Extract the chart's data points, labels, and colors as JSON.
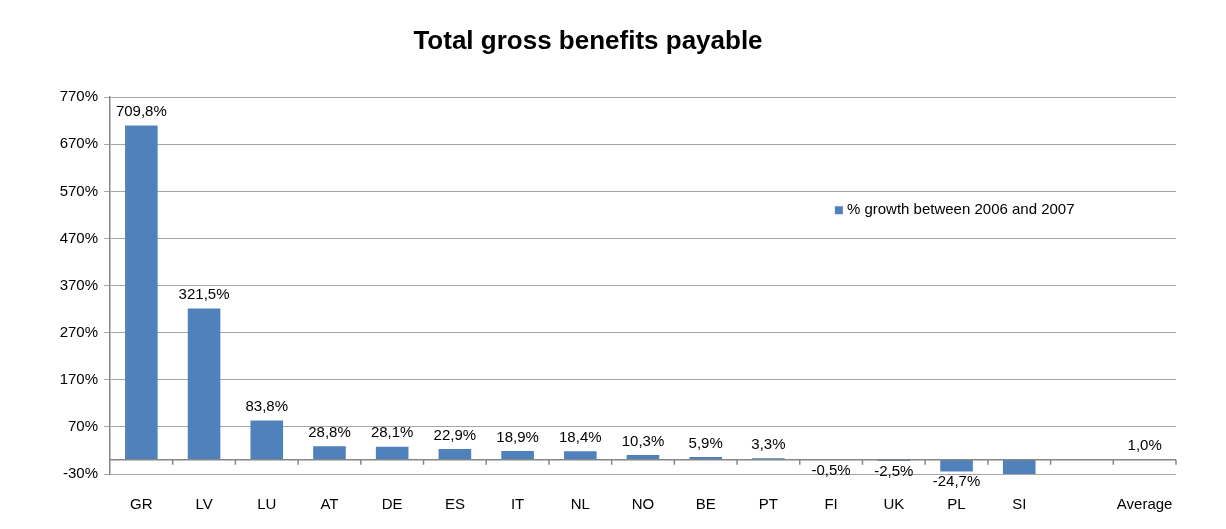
{
  "chart_data": {
    "type": "bar",
    "title": "Total gross benefits payable",
    "categories": [
      "GR",
      "LV",
      "LU",
      "AT",
      "DE",
      "ES",
      "IT",
      "NL",
      "NO",
      "BE",
      "PT",
      "FI",
      "UK",
      "PL",
      "SI",
      null,
      "Average"
    ],
    "series": [
      {
        "name": "% growth between 2006 and 2007",
        "color": "#4f81bd",
        "values": [
          709.8,
          321.5,
          83.8,
          28.8,
          28.1,
          22.9,
          18.9,
          18.4,
          10.3,
          5.9,
          3.3,
          -0.5,
          -2.5,
          -24.7,
          -30,
          null,
          1.0
        ],
        "value_labels": [
          "709,8%",
          "321,5%",
          "83,8%",
          "28,8%",
          "28,1%",
          "22,9%",
          "18,9%",
          "18,4%",
          "10,3%",
          "5,9%",
          "3,3%",
          "-0,5%",
          "-2,5%",
          "-24,7%",
          null,
          null,
          "1,0%"
        ]
      }
    ],
    "ylim": [
      -30,
      770
    ],
    "yticks": [
      {
        "value": -30,
        "label": "-30%"
      },
      {
        "value": 70,
        "label": "70%"
      },
      {
        "value": 170,
        "label": "170%"
      },
      {
        "value": 270,
        "label": "270%"
      },
      {
        "value": 370,
        "label": "370%"
      },
      {
        "value": 470,
        "label": "470%"
      },
      {
        "value": 570,
        "label": "570%"
      },
      {
        "value": 670,
        "label": "670%"
      },
      {
        "value": 770,
        "label": "770%"
      }
    ],
    "grid": "y",
    "legend": "top right"
  }
}
